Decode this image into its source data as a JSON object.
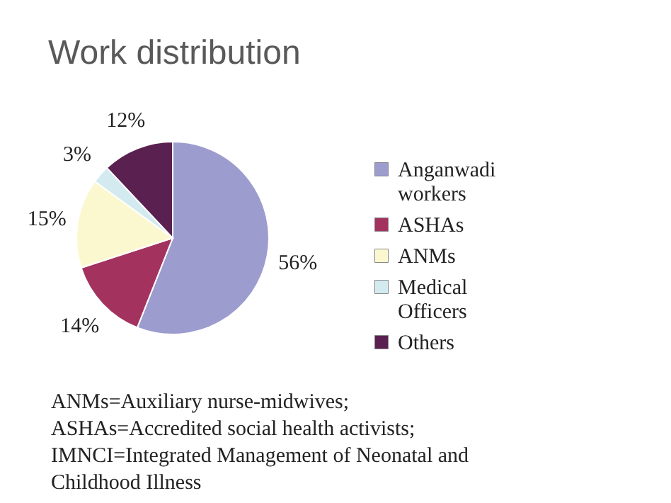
{
  "chart_data": {
    "type": "pie",
    "title": "Work distribution",
    "categories": [
      "Anganwadi workers",
      "ASHAs",
      "ANMs",
      "Medical Officers",
      "Others"
    ],
    "values": [
      56,
      14,
      15,
      3,
      12
    ],
    "value_labels": [
      "56%",
      "14%",
      "15%",
      "3%",
      "12%"
    ],
    "colors": [
      "#9c9ccf",
      "#a3325f",
      "#fbf8cf",
      "#d3eaf0",
      "#5a2150"
    ],
    "legend": "right",
    "annotations": [
      "ANMs=Auxiliary nurse-midwives; ASHAs=Accredited social health activists; IMNCI=Integrated Management of Neonatal and Childhood Illness"
    ]
  }
}
